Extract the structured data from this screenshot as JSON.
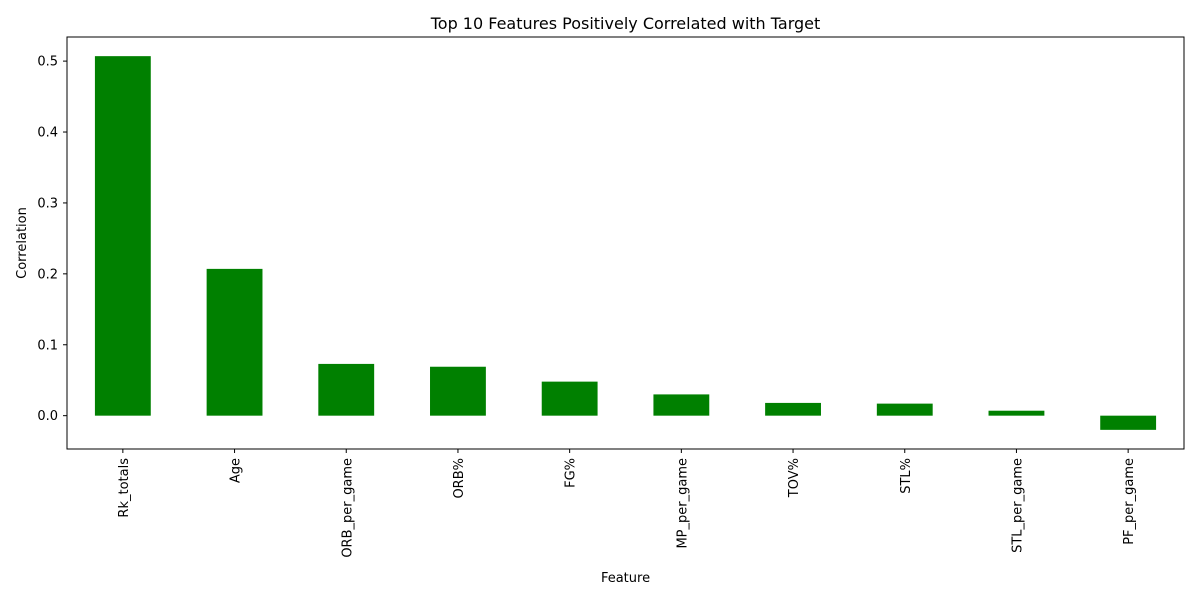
{
  "chart_data": {
    "type": "bar",
    "title": "Top 10 Features Positively Correlated with Target",
    "xlabel": "Feature",
    "ylabel": "Correlation",
    "categories": [
      "Rk_totals",
      "Age",
      "ORB_per_game",
      "ORB%",
      "FG%",
      "MP_per_game",
      "TOV%",
      "STL%",
      "STL_per_game",
      "PF_per_game"
    ],
    "values": [
      0.507,
      0.207,
      0.073,
      0.069,
      0.048,
      0.03,
      0.018,
      0.017,
      0.007,
      -0.02
    ],
    "ylim": [
      -0.047,
      0.534
    ],
    "yticks": [
      "0.0",
      "0.1",
      "0.2",
      "0.3",
      "0.4",
      "0.5"
    ],
    "ytick_values": [
      0.0,
      0.1,
      0.2,
      0.3,
      0.4,
      0.5
    ],
    "bar_color": "#008000",
    "grid": false,
    "legend": "none"
  }
}
